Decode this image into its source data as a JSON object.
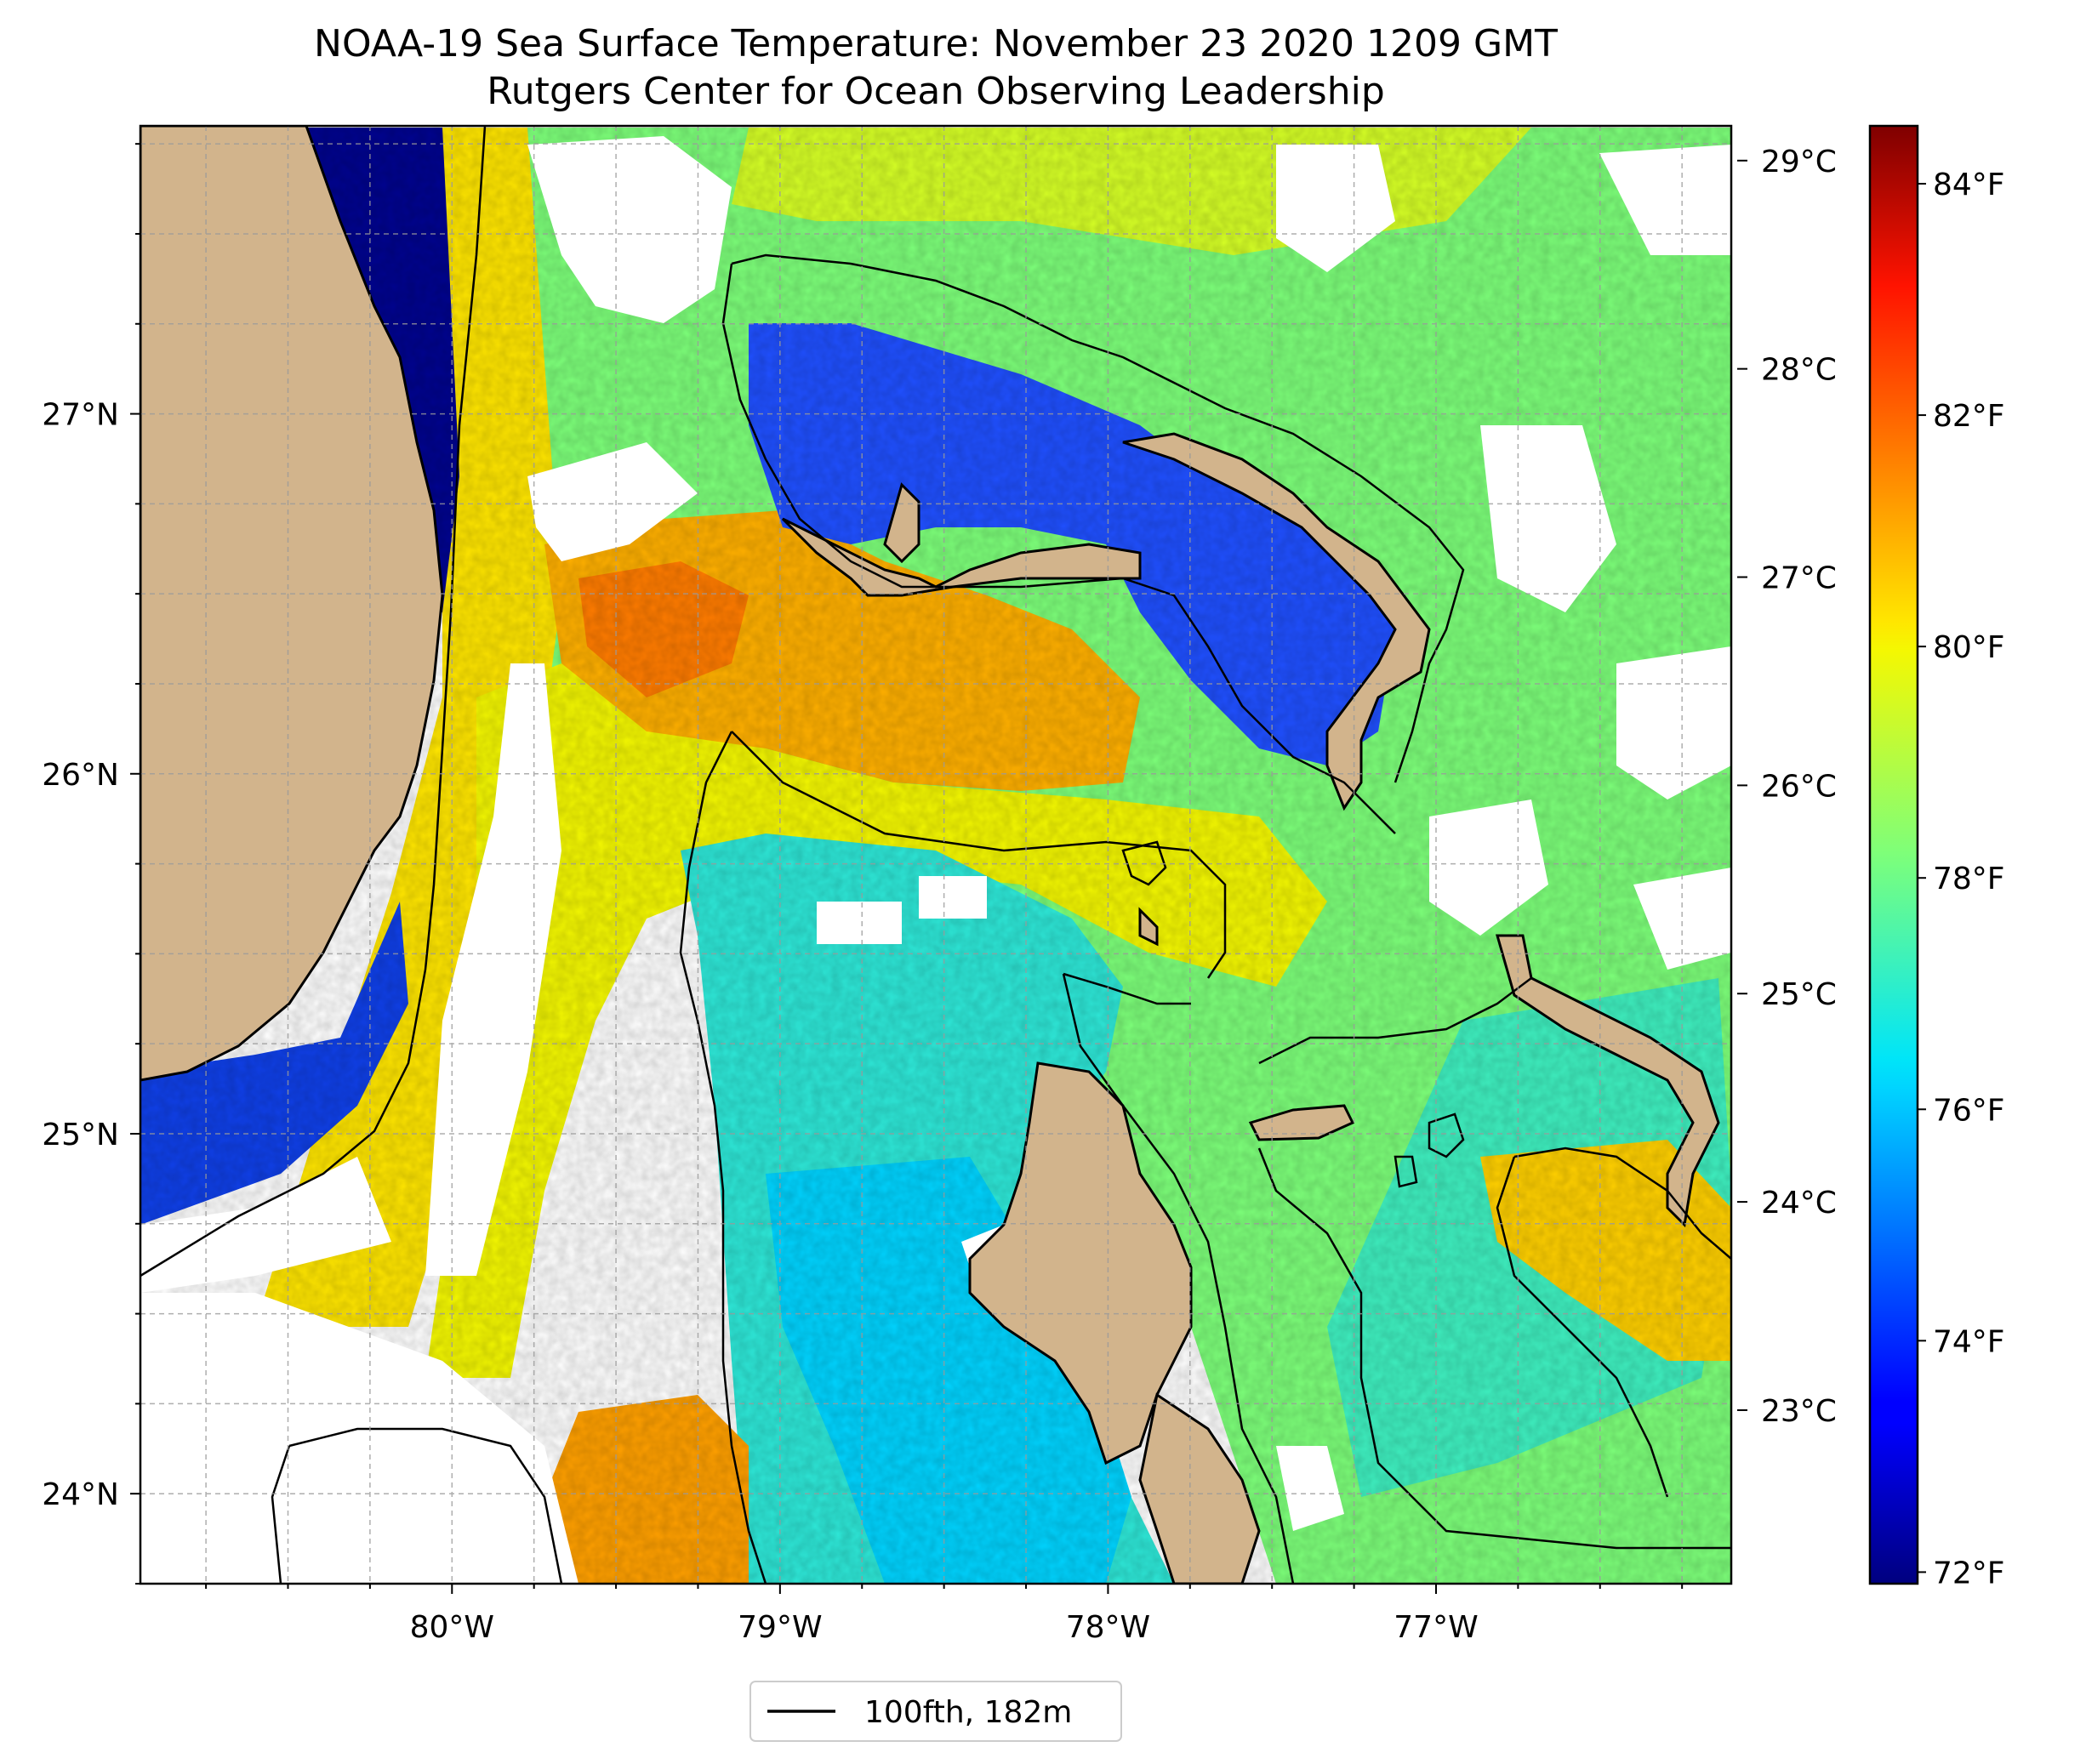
{
  "title": {
    "line1": "NOAA-19 Sea Surface Temperature: November 23 2020 1209 GMT",
    "line2": "Rutgers Center for Ocean Observing Leadership"
  },
  "map": {
    "lon_range": [
      -80.95,
      -76.1
    ],
    "lat_range": [
      23.75,
      27.8
    ],
    "lon_ticks": [
      {
        "value": -80,
        "label": "80°W"
      },
      {
        "value": -79,
        "label": "79°W"
      },
      {
        "value": -78,
        "label": "78°W"
      },
      {
        "value": -77,
        "label": "77°W"
      }
    ],
    "lat_ticks": [
      {
        "value": 24,
        "label": "24°N"
      },
      {
        "value": 25,
        "label": "25°N"
      },
      {
        "value": 26,
        "label": "26°N"
      },
      {
        "value": 27,
        "label": "27°N"
      }
    ],
    "grid": true,
    "land_color": "#d2b48c",
    "missing_data_color": "#ffffff"
  },
  "colorbar": {
    "colormap": "jet",
    "range_f": [
      71.9,
      84.5
    ],
    "celsius_ticks": [
      {
        "value": 23,
        "label": "23°C"
      },
      {
        "value": 24,
        "label": "24°C"
      },
      {
        "value": 25,
        "label": "25°C"
      },
      {
        "value": 26,
        "label": "26°C"
      },
      {
        "value": 27,
        "label": "27°C"
      },
      {
        "value": 28,
        "label": "28°C"
      },
      {
        "value": 29,
        "label": "29°C"
      }
    ],
    "fahrenheit_ticks": [
      {
        "value": 72,
        "label": "72°F"
      },
      {
        "value": 74,
        "label": "74°F"
      },
      {
        "value": 76,
        "label": "76°F"
      },
      {
        "value": 78,
        "label": "78°F"
      },
      {
        "value": 80,
        "label": "80°F"
      },
      {
        "value": 82,
        "label": "82°F"
      },
      {
        "value": 84,
        "label": "84°F"
      }
    ]
  },
  "legend": {
    "label": "100fth, 182m",
    "line_color": "#000000"
  }
}
